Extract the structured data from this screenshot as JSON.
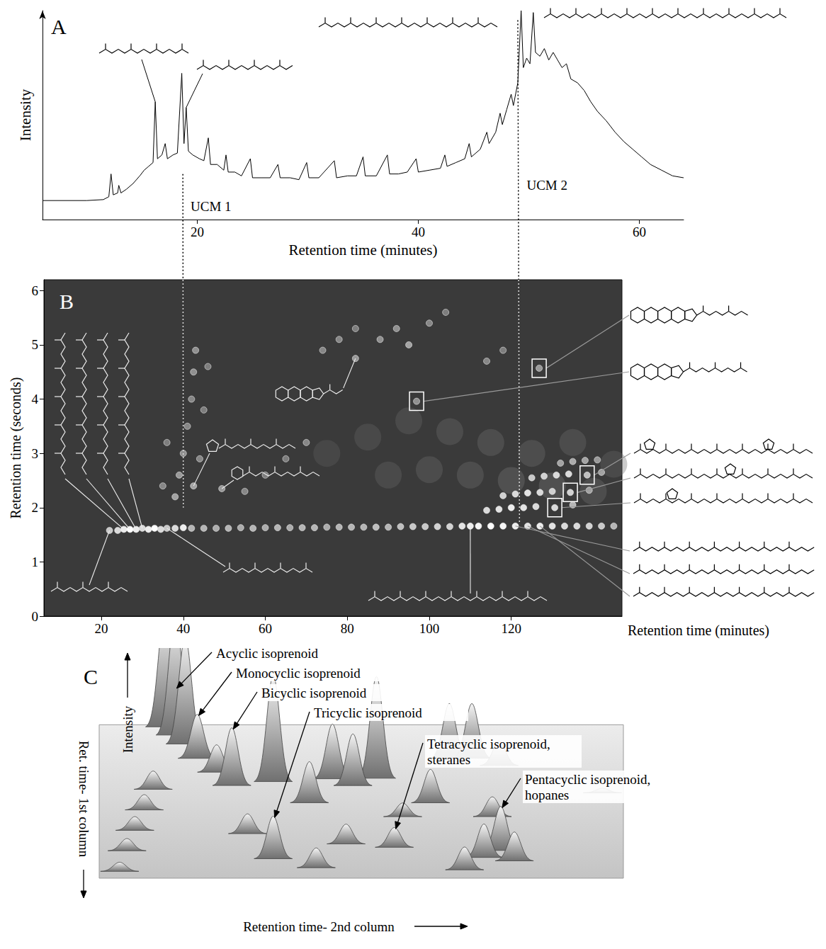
{
  "chart_data": [
    {
      "type": "line",
      "panel_label": "A",
      "x_label": "Retention time (minutes)",
      "y_label": "Intensity",
      "xlim": [
        6,
        64
      ],
      "xticks": [
        20,
        40,
        60
      ],
      "ylim": [
        -10,
        100
      ],
      "tick_labels": "x",
      "color": "#000000",
      "x": [
        6,
        10,
        11.5,
        12,
        12.2,
        12.4,
        12.8,
        12.9,
        13.1,
        13.6,
        14.2,
        14.8,
        15.2,
        15.6,
        16,
        16.2,
        16.4,
        16.8,
        17.1,
        17.3,
        17.8,
        18.2,
        18.6,
        18.8,
        19,
        19.2,
        19.6,
        20.2,
        20.6,
        21,
        21.2,
        21.8,
        22.4,
        22.6,
        22.8,
        23.4,
        24,
        24.8,
        25,
        25.8,
        26.6,
        27.3,
        27.5,
        28.4,
        29.2,
        29.9,
        30.1,
        31,
        32.4,
        32.6,
        33.6,
        34.4,
        35,
        35.2,
        36.2,
        37.2,
        37.4,
        38.2,
        39,
        39.8,
        40,
        41,
        42,
        42.4,
        42.6,
        43.4,
        44.2,
        44.6,
        44.8,
        45.6,
        46.2,
        46.4,
        47,
        47.4,
        47.6,
        48,
        48.4,
        48.6,
        49,
        49.3,
        49.5,
        49.8,
        50.1,
        50.4,
        50.6,
        51,
        51.4,
        51.8,
        52.2,
        52.6,
        53,
        53.4,
        53.8,
        54.4,
        55,
        55.6,
        56.2,
        57,
        57.8,
        58.6,
        59.4,
        60.2,
        61,
        62,
        63,
        64
      ],
      "values": [
        0,
        0,
        0.5,
        2,
        14,
        3,
        4,
        8,
        4,
        6,
        9,
        13,
        16,
        18,
        20,
        52,
        22,
        24,
        30,
        22,
        24,
        25,
        67,
        30,
        49,
        26,
        24,
        22,
        21,
        33,
        19,
        19,
        16,
        24,
        15,
        15,
        13,
        22,
        12,
        12,
        12,
        19,
        12,
        12,
        11,
        20,
        12,
        12,
        21,
        12,
        13,
        13,
        23,
        13,
        13,
        24,
        14,
        14,
        15,
        22,
        15,
        16,
        17,
        24,
        18,
        20,
        22,
        30,
        23,
        27,
        36,
        30,
        36,
        46,
        40,
        48,
        56,
        50,
        62,
        100,
        70,
        75,
        72,
        99,
        78,
        76,
        80,
        74,
        78,
        74,
        70,
        72,
        64,
        62,
        58,
        52,
        47,
        42,
        36,
        31,
        27,
        23,
        19,
        16,
        13,
        12
      ],
      "annotations": [
        {
          "text": "UCM 1",
          "x": 19.4,
          "y": -3
        },
        {
          "text": "UCM 2",
          "x": 49.8,
          "y": 8
        }
      ],
      "structure_peaks": [
        16.2,
        19
      ],
      "linked_to_B": [
        {
          "x": 18.7,
          "y": 14,
          "b_x": 40,
          "b_y": 2.0
        },
        {
          "x": 49,
          "y": 95,
          "b_x": 122,
          "b_y": 1.7
        }
      ]
    },
    {
      "type": "scatter",
      "panel_label": "B",
      "x_label": "Retention time (minutes)",
      "y_label": "Retention time (seconds)",
      "xlim": [
        6,
        147
      ],
      "xticks": [
        20,
        40,
        60,
        80,
        100,
        120
      ],
      "ylim": [
        0,
        6.2
      ],
      "yticks": [
        0,
        1,
        2,
        3,
        4,
        5,
        6
      ],
      "points": [
        [
          75,
          3.0,
          0.15
        ],
        [
          85,
          3.3,
          0.18
        ],
        [
          95,
          3.6,
          0.2
        ],
        [
          105,
          3.4,
          0.22
        ],
        [
          115,
          3.2,
          0.25
        ],
        [
          125,
          3.0,
          0.25
        ],
        [
          135,
          3.2,
          0.22
        ],
        [
          90,
          2.6,
          0.2
        ],
        [
          100,
          2.7,
          0.22
        ],
        [
          110,
          2.6,
          0.25
        ],
        [
          120,
          2.5,
          0.28
        ],
        [
          145,
          2.8,
          0.2
        ],
        [
          130,
          2.4,
          0.28
        ],
        [
          140,
          2.3,
          0.25
        ],
        [
          22,
          1.58,
          0.7
        ],
        [
          24,
          1.58,
          0.8
        ],
        [
          25.5,
          1.6,
          0.9
        ],
        [
          27,
          1.6,
          1.0
        ],
        [
          28.5,
          1.6,
          0.9
        ],
        [
          30,
          1.62,
          0.8
        ],
        [
          31.5,
          1.6,
          0.9
        ],
        [
          33,
          1.62,
          1.0
        ],
        [
          34.5,
          1.6,
          0.8
        ],
        [
          36,
          1.62,
          0.7
        ],
        [
          38,
          1.62,
          0.8
        ],
        [
          40,
          1.63,
          0.9
        ],
        [
          42,
          1.62,
          0.6
        ],
        [
          45,
          1.62,
          0.6
        ],
        [
          48,
          1.62,
          0.55
        ],
        [
          51,
          1.62,
          0.6
        ],
        [
          54,
          1.63,
          0.55
        ],
        [
          57,
          1.62,
          0.6
        ],
        [
          60,
          1.63,
          0.55
        ],
        [
          63,
          1.63,
          0.6
        ],
        [
          66,
          1.63,
          0.55
        ],
        [
          69,
          1.63,
          0.6
        ],
        [
          72,
          1.63,
          0.6
        ],
        [
          75,
          1.64,
          0.55
        ],
        [
          78,
          1.64,
          0.6
        ],
        [
          81,
          1.64,
          0.6
        ],
        [
          84,
          1.64,
          0.6
        ],
        [
          87,
          1.64,
          0.65
        ],
        [
          90,
          1.64,
          0.6
        ],
        [
          93,
          1.65,
          0.65
        ],
        [
          96,
          1.65,
          0.7
        ],
        [
          99,
          1.65,
          0.7
        ],
        [
          102,
          1.65,
          0.75
        ],
        [
          105,
          1.65,
          0.75
        ],
        [
          108,
          1.66,
          0.85
        ],
        [
          110,
          1.66,
          0.9
        ],
        [
          112,
          1.66,
          0.95
        ],
        [
          115,
          1.66,
          1.0
        ],
        [
          118,
          1.66,
          0.95
        ],
        [
          121,
          1.66,
          0.9
        ],
        [
          124,
          1.66,
          0.85
        ],
        [
          127,
          1.66,
          0.9
        ],
        [
          130,
          1.66,
          0.85
        ],
        [
          133,
          1.66,
          0.8
        ],
        [
          136,
          1.66,
          0.8
        ],
        [
          139,
          1.66,
          0.75
        ],
        [
          142,
          1.66,
          0.7
        ],
        [
          145,
          1.66,
          0.6
        ],
        [
          35,
          2.4,
          0.35
        ],
        [
          36,
          3.2,
          0.3
        ],
        [
          38,
          2.2,
          0.5
        ],
        [
          39,
          2.6,
          0.45
        ],
        [
          40,
          3.0,
          0.4
        ],
        [
          41,
          3.5,
          0.35
        ],
        [
          42,
          4.0,
          0.35
        ],
        [
          42.5,
          4.5,
          0.4
        ],
        [
          43,
          4.9,
          0.4
        ],
        [
          44,
          2.9,
          0.35
        ],
        [
          45,
          3.8,
          0.3
        ],
        [
          46,
          4.6,
          0.3
        ],
        [
          42.5,
          2.4,
          0.5
        ],
        [
          49.4,
          2.35,
          0.45
        ],
        [
          55,
          2.3,
          0.35
        ],
        [
          60,
          2.6,
          0.3
        ],
        [
          65,
          2.9,
          0.3
        ],
        [
          70,
          3.2,
          0.35
        ],
        [
          74,
          4.9,
          0.35
        ],
        [
          78,
          5.1,
          0.35
        ],
        [
          82,
          5.3,
          0.3
        ],
        [
          82,
          4.75,
          0.45
        ],
        [
          88,
          5.1,
          0.4
        ],
        [
          92,
          5.3,
          0.4
        ],
        [
          95,
          5.0,
          0.5
        ],
        [
          100,
          5.4,
          0.35
        ],
        [
          104,
          5.6,
          0.3
        ],
        [
          114,
          4.7,
          0.35
        ],
        [
          118,
          4.9,
          0.3
        ],
        [
          126.8,
          4.57,
          0.45
        ],
        [
          96.9,
          3.96,
          0.4
        ],
        [
          114,
          1.95,
          0.8
        ],
        [
          117,
          1.97,
          0.85
        ],
        [
          120,
          2.0,
          0.9
        ],
        [
          123,
          2.0,
          0.85
        ],
        [
          126,
          2.02,
          0.8
        ],
        [
          130.6,
          2.0,
          0.8
        ],
        [
          135,
          2.05,
          0.6
        ],
        [
          118,
          2.22,
          0.75
        ],
        [
          121,
          2.25,
          0.8
        ],
        [
          124,
          2.27,
          0.85
        ],
        [
          127,
          2.28,
          0.8
        ],
        [
          130,
          2.3,
          0.75
        ],
        [
          134.4,
          2.28,
          0.75
        ],
        [
          139,
          2.32,
          0.5
        ],
        [
          125,
          2.55,
          0.7
        ],
        [
          128,
          2.58,
          0.75
        ],
        [
          131,
          2.6,
          0.8
        ],
        [
          134,
          2.62,
          0.8
        ],
        [
          138.5,
          2.6,
          0.65
        ],
        [
          142,
          2.65,
          0.5
        ],
        [
          132,
          2.82,
          0.5
        ],
        [
          135,
          2.85,
          0.55
        ],
        [
          138,
          2.87,
          0.5
        ],
        [
          141,
          2.88,
          0.45
        ]
      ],
      "boxed": [
        [
          126.8,
          4.57
        ],
        [
          96.9,
          3.96
        ],
        [
          138.5,
          2.6
        ],
        [
          134.4,
          2.28
        ],
        [
          130.6,
          2.0
        ]
      ],
      "pointed": [
        [
          25.5,
          1.6
        ],
        [
          27,
          1.6
        ],
        [
          28.5,
          1.6
        ],
        [
          30,
          1.62
        ],
        [
          22,
          1.58
        ],
        [
          36,
          1.62
        ],
        [
          110,
          1.66
        ],
        [
          42.5,
          2.4
        ],
        [
          49.4,
          2.35
        ],
        [
          82,
          4.75
        ],
        [
          121,
          1.66
        ],
        [
          124,
          1.66
        ],
        [
          127,
          1.66
        ]
      ]
    },
    {
      "type": "surface",
      "panel_label": "C",
      "x_label": "Retention time- 2nd column",
      "y_label": "Ret. time- 1st column",
      "z_label": "Intensity",
      "xlim": [
        0,
        100
      ],
      "ylim": [
        -50,
        100
      ],
      "tick_labels": false,
      "peaks": [
        [
          12.5,
          2.2,
          75
        ],
        [
          14.5,
          7.6,
          80
        ],
        [
          16.4,
          13.3,
          70
        ],
        [
          18.7,
          22.2,
          29
        ],
        [
          66.8,
          22.2,
          36
        ],
        [
          71.1,
          22.2,
          36
        ],
        [
          76.3,
          26.7,
          16
        ],
        [
          22.4,
          31.1,
          18
        ],
        [
          44.5,
          35.6,
          36
        ],
        [
          52.9,
          35.6,
          67
        ],
        [
          33.2,
          37.8,
          70
        ],
        [
          25.3,
          40,
          38
        ],
        [
          48.4,
          40,
          34
        ],
        [
          10.3,
          42.2,
          12
        ],
        [
          96,
          44.4,
          3
        ],
        [
          40.1,
          51.1,
          27
        ],
        [
          63.2,
          51.1,
          22
        ],
        [
          8.6,
          55.6,
          10
        ],
        [
          57.9,
          60,
          9
        ],
        [
          75,
          60,
          13
        ],
        [
          6.8,
          68.9,
          9
        ],
        [
          28.3,
          71.1,
          13
        ],
        [
          47.1,
          77.8,
          13
        ],
        [
          56.3,
          80,
          13
        ],
        [
          5.3,
          82.2,
          8
        ],
        [
          76.6,
          82.2,
          29
        ],
        [
          73.4,
          86.7,
          22
        ],
        [
          33.2,
          87.6,
          28
        ],
        [
          79.2,
          88.9,
          19
        ],
        [
          41.4,
          93.3,
          13
        ],
        [
          69.7,
          94.7,
          15
        ],
        [
          3.9,
          95.6,
          6
        ]
      ],
      "annotations": [
        {
          "text": "Acyclic isoprenoid",
          "peak": 1
        },
        {
          "text": "Monocyclic isoprenoid",
          "peak": 3
        },
        {
          "text": "Bicyclic isoprenoid",
          "peak": 11
        },
        {
          "text": "Tricyclic isoprenoid",
          "peak": 27
        },
        {
          "text": "Tetracyclic isoprenoid, steranes",
          "peak": 23
        },
        {
          "text": "Pentacyclic isoprenoid, hopanes",
          "peak": 25
        }
      ]
    }
  ]
}
